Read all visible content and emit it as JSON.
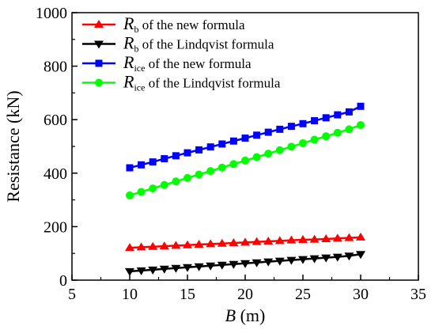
{
  "chart_data": {
    "type": "line",
    "xlabel": {
      "var": "B",
      "unit": " (m)"
    },
    "ylabel": "Resistance (kN)",
    "xlim": [
      5,
      35
    ],
    "ylim": [
      0,
      1000
    ],
    "xticks": [
      5,
      10,
      15,
      20,
      25,
      30,
      35
    ],
    "yticks": [
      0,
      200,
      400,
      600,
      800,
      1000
    ],
    "legend_position": "top-left",
    "x": [
      10,
      11,
      12,
      13,
      14,
      15,
      16,
      17,
      18,
      19,
      20,
      21,
      22,
      23,
      24,
      25,
      26,
      27,
      28,
      29,
      30
    ],
    "series": [
      {
        "symbol": "R",
        "sub": "b",
        "name_rest": " of the new formula",
        "color": "#ff0000",
        "marker": "triangle-up",
        "values": [
          121,
          123,
          125,
          127,
          129,
          131,
          133,
          135,
          137,
          139,
          141,
          143,
          145,
          147,
          149,
          151,
          152,
          154,
          156,
          158,
          160
        ]
      },
      {
        "symbol": "R",
        "sub": "b",
        "name_rest": " of the Lindqvist formula",
        "color": "#000000",
        "marker": "triangle-down",
        "values": [
          33,
          36,
          39,
          42,
          45,
          48,
          51,
          54,
          57,
          60,
          63,
          66,
          69,
          72,
          75,
          78,
          81,
          84,
          87,
          91,
          97
        ]
      },
      {
        "symbol": "R",
        "sub": "ice",
        "name_rest": " of the new formula",
        "color": "#0000ff",
        "marker": "square",
        "values": [
          420,
          431,
          442,
          454,
          465,
          476,
          487,
          498,
          509,
          520,
          531,
          542,
          553,
          564,
          575,
          585,
          596,
          607,
          618,
          629,
          650
        ]
      },
      {
        "symbol": "R",
        "sub": "ice",
        "name_rest": " of the Lindqvist formula",
        "color": "#00ff00",
        "marker": "circle",
        "values": [
          317,
          330,
          343,
          356,
          369,
          382,
          395,
          408,
          421,
          434,
          447,
          460,
          473,
          486,
          499,
          512,
          525,
          538,
          551,
          564,
          580
        ]
      }
    ]
  }
}
